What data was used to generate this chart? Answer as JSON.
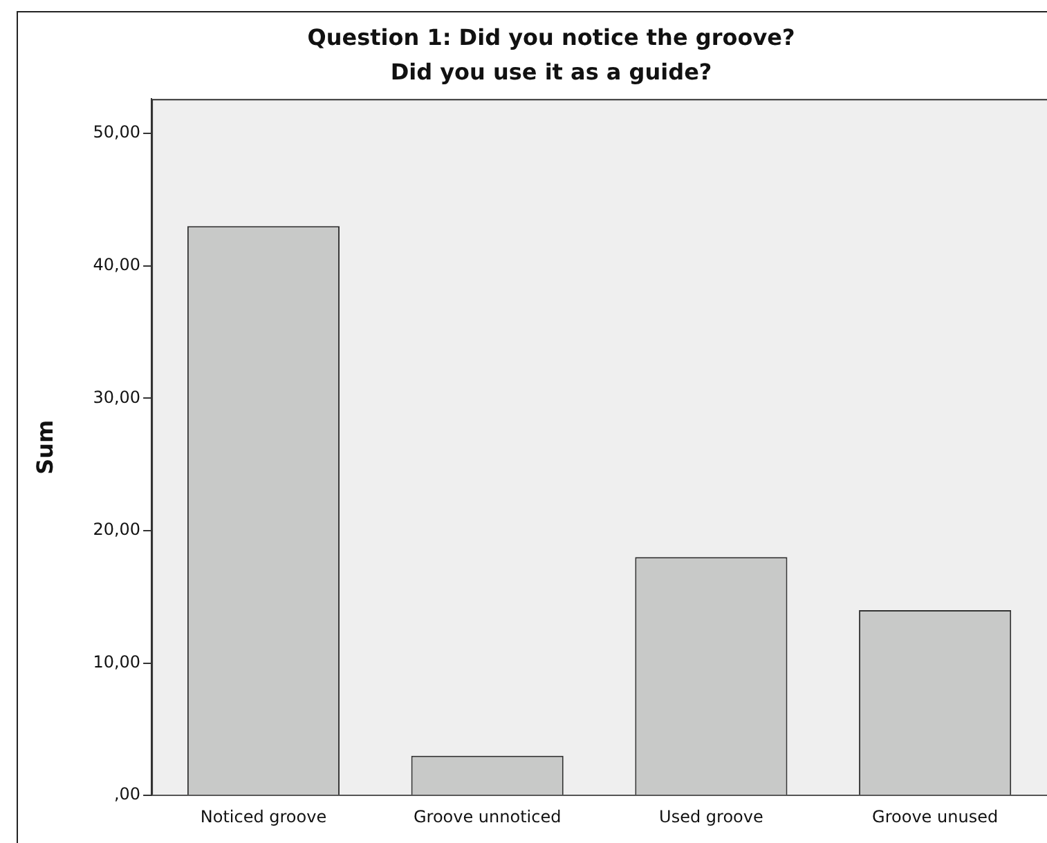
{
  "chart_data": {
    "type": "bar",
    "title": "Question 1: Did you notice the groove?\nDid you use it as a guide?",
    "ylabel": "Sum",
    "categories": [
      "Noticed groove",
      "Groove unnoticed",
      "Used groove",
      "Groove unused"
    ],
    "values": [
      43,
      3,
      18,
      14
    ],
    "color": "#c8c9c8",
    "ylim": [
      0,
      52.6
    ],
    "yticks": [
      {
        "value": 0,
        "label": ",00"
      },
      {
        "value": 10,
        "label": "10,00"
      },
      {
        "value": 20,
        "label": "20,00"
      },
      {
        "value": 30,
        "label": "30,00"
      },
      {
        "value": 40,
        "label": "40,00"
      },
      {
        "value": 50,
        "label": "50,00"
      }
    ],
    "grid": false,
    "legend": false
  }
}
